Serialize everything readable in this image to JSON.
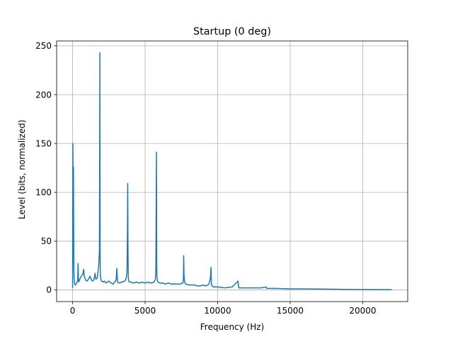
{
  "chart_data": {
    "type": "line",
    "title": "Startup (0 deg)",
    "xlabel": "Frequency (Hz)",
    "ylabel": "Level (bits, normalized)",
    "xlim": [
      -1100,
      23100
    ],
    "ylim": [
      -12,
      255
    ],
    "xticks": [
      0,
      5000,
      10000,
      15000,
      20000
    ],
    "yticks": [
      0,
      50,
      100,
      150,
      200,
      250
    ],
    "grid": true,
    "series_color": "#1f77b4",
    "series": [
      {
        "x": [
          0,
          20,
          40,
          60,
          80,
          100,
          140,
          200,
          280,
          350,
          380,
          400,
          420,
          450,
          500,
          600,
          700,
          760,
          800,
          850,
          900,
          1000,
          1100,
          1200,
          1300,
          1400,
          1500,
          1550,
          1600,
          1700,
          1800,
          1850,
          1870,
          1880,
          1890,
          1900,
          1910,
          1920,
          1940,
          1960,
          2000,
          2100,
          2200,
          2300,
          2400,
          2500,
          2650,
          2800,
          3000,
          3050,
          3100,
          3200,
          3400,
          3600,
          3700,
          3750,
          3780,
          3800,
          3820,
          3840,
          3860,
          3900,
          4000,
          4200,
          4400,
          4600,
          4800,
          5000,
          5200,
          5400,
          5600,
          5700,
          5740,
          5760,
          5780,
          5800,
          5820,
          5860,
          5900,
          6000,
          6200,
          6400,
          6600,
          6800,
          7000,
          7200,
          7400,
          7600,
          7640,
          7660,
          7680,
          7720,
          7800,
          8000,
          8200,
          8400,
          8600,
          8800,
          9000,
          9200,
          9400,
          9500,
          9540,
          9560,
          9580,
          9620,
          9700,
          10000,
          10500,
          11000,
          11400,
          11440,
          11460,
          11500,
          11600,
          12000,
          12500,
          13000,
          13340,
          13360,
          13400,
          13600,
          14000,
          15000,
          16000,
          17000,
          18000,
          19000,
          20000,
          21000,
          22000
        ],
        "values": [
          2,
          150,
          60,
          126,
          30,
          12,
          6,
          5,
          7,
          10,
          27,
          12,
          8,
          9,
          11,
          14,
          16,
          21,
          14,
          12,
          10,
          9,
          11,
          14,
          10,
          9,
          12,
          17,
          11,
          12,
          25,
          40,
          160,
          243,
          120,
          35,
          18,
          14,
          13,
          10,
          9,
          8,
          9,
          7,
          8,
          9,
          7,
          6,
          10,
          22,
          8,
          7,
          8,
          9,
          12,
          18,
          57,
          109,
          40,
          14,
          10,
          8,
          8,
          7,
          8,
          7,
          8,
          7,
          8,
          7,
          8,
          10,
          20,
          80,
          141,
          25,
          12,
          9,
          8,
          7,
          7,
          6,
          7,
          6,
          6,
          6,
          6,
          7,
          12,
          35,
          15,
          8,
          6,
          5,
          5,
          5,
          4,
          4,
          5,
          4,
          6,
          12,
          23,
          8,
          5,
          4,
          3,
          3,
          2,
          3,
          9,
          4,
          2,
          2,
          2,
          2,
          2,
          2,
          3,
          2,
          1.5,
          1.5,
          1.5,
          1,
          1,
          0.8,
          0.7,
          0.5,
          0.4,
          0.3,
          0.3
        ]
      }
    ]
  }
}
